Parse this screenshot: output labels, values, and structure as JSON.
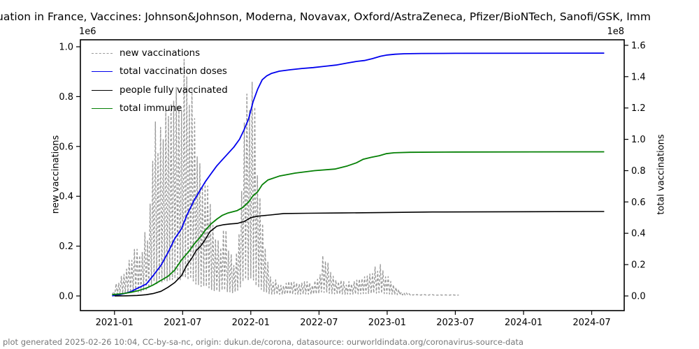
{
  "title": "uation in France, Vaccines: Johnson&Johnson, Moderna, Novavax, Oxford/AstraZeneca, Pfizer/BioNTech, Sanofi/GSK, Imm",
  "footer": "plot generated 2025-02-26 10:04, CC-by-sa-nc, origin: dukun.de/corona, datasource: ourworldindata.org/coronavirus-source-data",
  "axes": {
    "left_label": "new vaccinations",
    "right_label": "total vaccinations",
    "left_offset": "1e6",
    "right_offset": "1e8",
    "x_ticks": [
      {
        "label": "2021-01",
        "t": 0
      },
      {
        "label": "2021-07",
        "t": 6
      },
      {
        "label": "2022-01",
        "t": 12
      },
      {
        "label": "2022-07",
        "t": 18
      },
      {
        "label": "2023-01",
        "t": 24
      },
      {
        "label": "2023-07",
        "t": 30
      },
      {
        "label": "2024-01",
        "t": 36
      },
      {
        "label": "2024-07",
        "t": 42
      }
    ],
    "left_ticks": [
      {
        "label": "0.0",
        "v": 0.0
      },
      {
        "label": "0.2",
        "v": 0.2
      },
      {
        "label": "0.4",
        "v": 0.4
      },
      {
        "label": "0.6",
        "v": 0.6
      },
      {
        "label": "0.8",
        "v": 0.8
      },
      {
        "label": "1.0",
        "v": 1.0
      }
    ],
    "right_ticks": [
      {
        "label": "0.0",
        "v": 0.0
      },
      {
        "label": "0.2",
        "v": 0.2
      },
      {
        "label": "0.4",
        "v": 0.4
      },
      {
        "label": "0.6",
        "v": 0.6
      },
      {
        "label": "0.8",
        "v": 0.8
      },
      {
        "label": "1.0",
        "v": 1.0
      },
      {
        "label": "1.2",
        "v": 1.2
      },
      {
        "label": "1.4",
        "v": 1.4
      },
      {
        "label": "1.6",
        "v": 1.6
      }
    ]
  },
  "legend": {
    "items": [
      {
        "label": "new vaccinations",
        "color": "#999999",
        "dashed": true
      },
      {
        "label": "total vaccination doses",
        "color": "#0000ee",
        "dashed": false
      },
      {
        "label": "people fully vaccinated",
        "color": "#000000",
        "dashed": false
      },
      {
        "label": "total immune",
        "color": "#058005",
        "dashed": false
      }
    ]
  },
  "colors": {
    "new_vaccinations": "#999999",
    "total_doses": "#0000ee",
    "fully_vaccinated": "#000000",
    "total_immune": "#058005",
    "frame": "#000000",
    "footer_text": "#777778"
  },
  "chart_data": {
    "type": "line",
    "x_unit": "months since 2021-01-01",
    "xlim_months": [
      -3.0,
      44.86
    ],
    "ylim_left_e6": [
      -0.0588,
      1.0279
    ],
    "ylim_right_e8": [
      -0.0936,
      1.6353
    ],
    "grid": false,
    "legend_position": "upper-left",
    "series": [
      {
        "name": "new vaccinations",
        "axis": "left",
        "style": "dashed",
        "color_key": "new_vaccinations",
        "kind": "noisy-daily",
        "period_months": 0.2302,
        "low_fraction": 0.08,
        "low_base_e6": 0.003,
        "envelope_e6": [
          [
            -0.2,
            0.004
          ],
          [
            0,
            0.03
          ],
          [
            0.5,
            0.07
          ],
          [
            1,
            0.1
          ],
          [
            1.5,
            0.16
          ],
          [
            2,
            0.19
          ],
          [
            2.5,
            0.2
          ],
          [
            2.9,
            0.26
          ],
          [
            3.2,
            0.45
          ],
          [
            3.5,
            0.62
          ],
          [
            3.8,
            0.58
          ],
          [
            4.1,
            0.65
          ],
          [
            4.4,
            0.68
          ],
          [
            4.7,
            0.7
          ],
          [
            5.0,
            0.73
          ],
          [
            5.3,
            0.77
          ],
          [
            5.6,
            0.71
          ],
          [
            5.9,
            0.74
          ],
          [
            6.2,
            0.82
          ],
          [
            6.5,
            0.76
          ],
          [
            6.8,
            0.72
          ],
          [
            7.1,
            0.65
          ],
          [
            7.4,
            0.58
          ],
          [
            7.7,
            0.5
          ],
          [
            8.0,
            0.44
          ],
          [
            8.3,
            0.35
          ],
          [
            8.6,
            0.29
          ],
          [
            9.0,
            0.24
          ],
          [
            9.3,
            0.22
          ],
          [
            9.6,
            0.26
          ],
          [
            9.9,
            0.23
          ],
          [
            10.2,
            0.16
          ],
          [
            10.5,
            0.13
          ],
          [
            10.8,
            0.18
          ],
          [
            11.0,
            0.3
          ],
          [
            11.2,
            0.48
          ],
          [
            11.4,
            0.7
          ],
          [
            11.6,
            0.97
          ],
          [
            11.8,
            0.88
          ],
          [
            12.0,
            0.8
          ],
          [
            12.15,
            0.89
          ],
          [
            12.4,
            0.7
          ],
          [
            12.6,
            0.55
          ],
          [
            12.8,
            0.4
          ],
          [
            13.0,
            0.28
          ],
          [
            13.3,
            0.17
          ],
          [
            13.6,
            0.1
          ],
          [
            14.0,
            0.062
          ],
          [
            14.5,
            0.052
          ],
          [
            15.0,
            0.047
          ],
          [
            15.5,
            0.056
          ],
          [
            16.0,
            0.05
          ],
          [
            16.5,
            0.046
          ],
          [
            17.0,
            0.052
          ],
          [
            17.5,
            0.047
          ],
          [
            17.8,
            0.066
          ],
          [
            18.1,
            0.1
          ],
          [
            18.4,
            0.16
          ],
          [
            18.7,
            0.13
          ],
          [
            19.0,
            0.09
          ],
          [
            19.3,
            0.066
          ],
          [
            19.7,
            0.056
          ],
          [
            20.0,
            0.06
          ],
          [
            20.5,
            0.05
          ],
          [
            21.0,
            0.056
          ],
          [
            21.5,
            0.06
          ],
          [
            22.0,
            0.066
          ],
          [
            22.5,
            0.076
          ],
          [
            22.8,
            0.095
          ],
          [
            23.1,
            0.12
          ],
          [
            23.4,
            0.11
          ],
          [
            23.7,
            0.085
          ],
          [
            24.0,
            0.07
          ],
          [
            24.3,
            0.064
          ],
          [
            24.6,
            0.04
          ],
          [
            25.0,
            0.022
          ],
          [
            25.5,
            0.012
          ],
          [
            26.0,
            0.007
          ],
          [
            27.0,
            0.005
          ],
          [
            28.0,
            0.0045
          ],
          [
            29.0,
            0.004
          ],
          [
            30.3,
            0.004
          ]
        ]
      },
      {
        "name": "total vaccination doses",
        "axis": "right",
        "style": "solid",
        "color_key": "total_doses",
        "kind": "line",
        "points_e8": [
          [
            -0.2,
            0.0
          ],
          [
            0,
            0.004
          ],
          [
            0.5,
            0.009
          ],
          [
            1,
            0.018
          ],
          [
            1.5,
            0.03
          ],
          [
            2,
            0.048
          ],
          [
            2.4,
            0.062
          ],
          [
            2.8,
            0.076
          ],
          [
            3.4,
            0.129
          ],
          [
            4.1,
            0.196
          ],
          [
            4.7,
            0.276
          ],
          [
            5.3,
            0.365
          ],
          [
            5.9,
            0.43
          ],
          [
            6.4,
            0.52
          ],
          [
            7.0,
            0.61
          ],
          [
            7.5,
            0.67
          ],
          [
            8.0,
            0.73
          ],
          [
            8.5,
            0.78
          ],
          [
            9.0,
            0.83
          ],
          [
            9.5,
            0.87
          ],
          [
            10.0,
            0.91
          ],
          [
            10.5,
            0.95
          ],
          [
            11.0,
            1.0
          ],
          [
            11.4,
            1.06
          ],
          [
            11.8,
            1.13
          ],
          [
            12.2,
            1.24
          ],
          [
            12.6,
            1.32
          ],
          [
            13.0,
            1.38
          ],
          [
            13.4,
            1.405
          ],
          [
            13.8,
            1.42
          ],
          [
            14.5,
            1.435
          ],
          [
            15.5,
            1.444
          ],
          [
            16.5,
            1.452
          ],
          [
            17.5,
            1.458
          ],
          [
            18.5,
            1.466
          ],
          [
            19.5,
            1.474
          ],
          [
            20.5,
            1.487
          ],
          [
            21.3,
            1.497
          ],
          [
            22.0,
            1.503
          ],
          [
            22.7,
            1.515
          ],
          [
            23.4,
            1.53
          ],
          [
            24.0,
            1.538
          ],
          [
            24.7,
            1.543
          ],
          [
            25.5,
            1.546
          ],
          [
            27.0,
            1.548
          ],
          [
            30.0,
            1.549
          ],
          [
            43.1,
            1.55
          ]
        ]
      },
      {
        "name": "people fully vaccinated",
        "axis": "right",
        "style": "solid",
        "color_key": "fully_vaccinated",
        "kind": "line",
        "points_e8": [
          [
            0,
            0.0
          ],
          [
            1,
            0.001
          ],
          [
            2,
            0.003
          ],
          [
            2.8,
            0.008
          ],
          [
            3.4,
            0.015
          ],
          [
            4.1,
            0.03
          ],
          [
            4.7,
            0.055
          ],
          [
            5.3,
            0.085
          ],
          [
            5.9,
            0.13
          ],
          [
            6.4,
            0.2
          ],
          [
            6.8,
            0.24
          ],
          [
            7.2,
            0.29
          ],
          [
            7.6,
            0.32
          ],
          [
            7.9,
            0.35
          ],
          [
            8.4,
            0.41
          ],
          [
            9.0,
            0.445
          ],
          [
            9.6,
            0.455
          ],
          [
            10.2,
            0.46
          ],
          [
            10.8,
            0.463
          ],
          [
            11.4,
            0.475
          ],
          [
            12.0,
            0.5
          ],
          [
            12.7,
            0.51
          ],
          [
            13.7,
            0.517
          ],
          [
            14.9,
            0.526
          ],
          [
            17.0,
            0.528
          ],
          [
            20.0,
            0.53
          ],
          [
            24.0,
            0.533
          ],
          [
            28.0,
            0.536
          ],
          [
            43.1,
            0.539
          ]
        ]
      },
      {
        "name": "total immune",
        "axis": "right",
        "style": "solid",
        "color_key": "total_immune",
        "kind": "line",
        "points_e8": [
          [
            -0.2,
            0.008
          ],
          [
            0,
            0.01
          ],
          [
            0.5,
            0.013
          ],
          [
            1,
            0.018
          ],
          [
            1.5,
            0.024
          ],
          [
            2,
            0.032
          ],
          [
            2.8,
            0.05
          ],
          [
            3.4,
            0.07
          ],
          [
            4.1,
            0.1
          ],
          [
            4.7,
            0.125
          ],
          [
            5.3,
            0.165
          ],
          [
            5.9,
            0.23
          ],
          [
            6.5,
            0.28
          ],
          [
            7.0,
            0.33
          ],
          [
            7.55,
            0.375
          ],
          [
            8.0,
            0.42
          ],
          [
            8.5,
            0.46
          ],
          [
            9.0,
            0.49
          ],
          [
            9.5,
            0.515
          ],
          [
            10.0,
            0.53
          ],
          [
            10.8,
            0.545
          ],
          [
            11.3,
            0.565
          ],
          [
            11.8,
            0.6
          ],
          [
            12.2,
            0.64
          ],
          [
            12.6,
            0.665
          ],
          [
            13.0,
            0.71
          ],
          [
            13.5,
            0.74
          ],
          [
            14.5,
            0.765
          ],
          [
            15.9,
            0.784
          ],
          [
            17.6,
            0.8
          ],
          [
            19.4,
            0.81
          ],
          [
            20.5,
            0.83
          ],
          [
            21.3,
            0.85
          ],
          [
            21.9,
            0.873
          ],
          [
            22.6,
            0.885
          ],
          [
            23.3,
            0.895
          ],
          [
            23.9,
            0.908
          ],
          [
            24.6,
            0.914
          ],
          [
            26.0,
            0.917
          ],
          [
            30.0,
            0.919
          ],
          [
            43.1,
            0.92
          ]
        ]
      }
    ]
  }
}
